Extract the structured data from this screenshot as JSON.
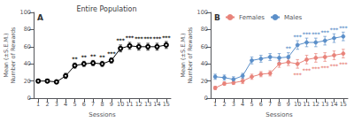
{
  "chart_data": [
    {
      "type": "line",
      "title": "Entire Population",
      "annotations": [
        {
          "text": "A"
        }
      ],
      "x": [
        1,
        2,
        3,
        4,
        5,
        6,
        7,
        8,
        9,
        10,
        11,
        12,
        13,
        14,
        15
      ],
      "xlabel": "Sessions",
      "ylabel": "Mean (±S.E.M.)\nNumber of Rewards",
      "xlim": [
        0.5,
        15.5
      ],
      "xticks": [
        1,
        2,
        3,
        4,
        5,
        6,
        7,
        8,
        9,
        10,
        11,
        12,
        13,
        14,
        15
      ],
      "ylim": [
        0,
        100
      ],
      "yticks": [
        0,
        20,
        40,
        60,
        80,
        100
      ],
      "grid": false,
      "series": [
        {
          "color": "#000000",
          "marker": "open_circle",
          "values": [
            20,
            20,
            19,
            26,
            38,
            40,
            41,
            40,
            44,
            58,
            61,
            60,
            60,
            60,
            62
          ],
          "errors": [
            2,
            2,
            2,
            3,
            3,
            3,
            3,
            3,
            3,
            4,
            4,
            4,
            4,
            4,
            4
          ],
          "annotations": [
            {
              "x": 5,
              "text": "**"
            },
            {
              "x": 6,
              "text": "**"
            },
            {
              "x": 7,
              "text": "**"
            },
            {
              "x": 8,
              "text": "**"
            },
            {
              "x": 9,
              "text": "***"
            },
            {
              "x": 10,
              "text": "***"
            },
            {
              "x": 11,
              "text": "***"
            },
            {
              "x": 12,
              "text": "***"
            },
            {
              "x": 13,
              "text": "***"
            },
            {
              "x": 14,
              "text": "***"
            },
            {
              "x": 15,
              "text": "***"
            }
          ]
        }
      ]
    },
    {
      "type": "line",
      "annotations": [
        {
          "text": "B"
        }
      ],
      "legend": "upper left",
      "x": [
        1,
        2,
        3,
        4,
        5,
        6,
        7,
        8,
        9,
        10,
        11,
        12,
        13,
        14,
        15
      ],
      "xlabel": "Sessions",
      "ylabel": "Mean (±S.E.M.)\nNumber of Rewards",
      "xlim": [
        0.5,
        15.5
      ],
      "xticks": [
        1,
        2,
        3,
        4,
        5,
        6,
        7,
        8,
        9,
        10,
        11,
        12,
        13,
        14,
        15
      ],
      "ylim": [
        0,
        100
      ],
      "yticks": [
        0,
        20,
        40,
        60,
        80,
        100
      ],
      "grid": false,
      "series": [
        {
          "name": "Females",
          "color": "#e8837a",
          "marker": "circle",
          "values": [
            12,
            17,
            18,
            20,
            25,
            28,
            29,
            40,
            42,
            40,
            45,
            47,
            48,
            50,
            52
          ],
          "errors": [
            2,
            2,
            2,
            3,
            3,
            3,
            3,
            4,
            4,
            5,
            5,
            5,
            5,
            5,
            5
          ],
          "annotations": [
            {
              "x": 10,
              "text": "***"
            },
            {
              "x": 11,
              "text": "***"
            },
            {
              "x": 12,
              "text": "***"
            },
            {
              "x": 13,
              "text": "***"
            },
            {
              "x": 14,
              "text": "***"
            },
            {
              "x": 15,
              "text": "***"
            }
          ]
        },
        {
          "name": "Males",
          "color": "#5b8fc9",
          "marker": "circle",
          "values": [
            25,
            24,
            22,
            26,
            44,
            46,
            48,
            47,
            48,
            62,
            65,
            65,
            67,
            70,
            72
          ],
          "errors": [
            3,
            3,
            3,
            3,
            4,
            4,
            4,
            5,
            5,
            5,
            5,
            5,
            5,
            5,
            5
          ],
          "annotations": [
            {
              "x": 9,
              "text": "**"
            },
            {
              "x": 10,
              "text": "***"
            },
            {
              "x": 11,
              "text": "***"
            },
            {
              "x": 12,
              "text": "***"
            },
            {
              "x": 13,
              "text": "***"
            },
            {
              "x": 14,
              "text": "***"
            },
            {
              "x": 15,
              "text": "***"
            }
          ]
        }
      ]
    }
  ]
}
